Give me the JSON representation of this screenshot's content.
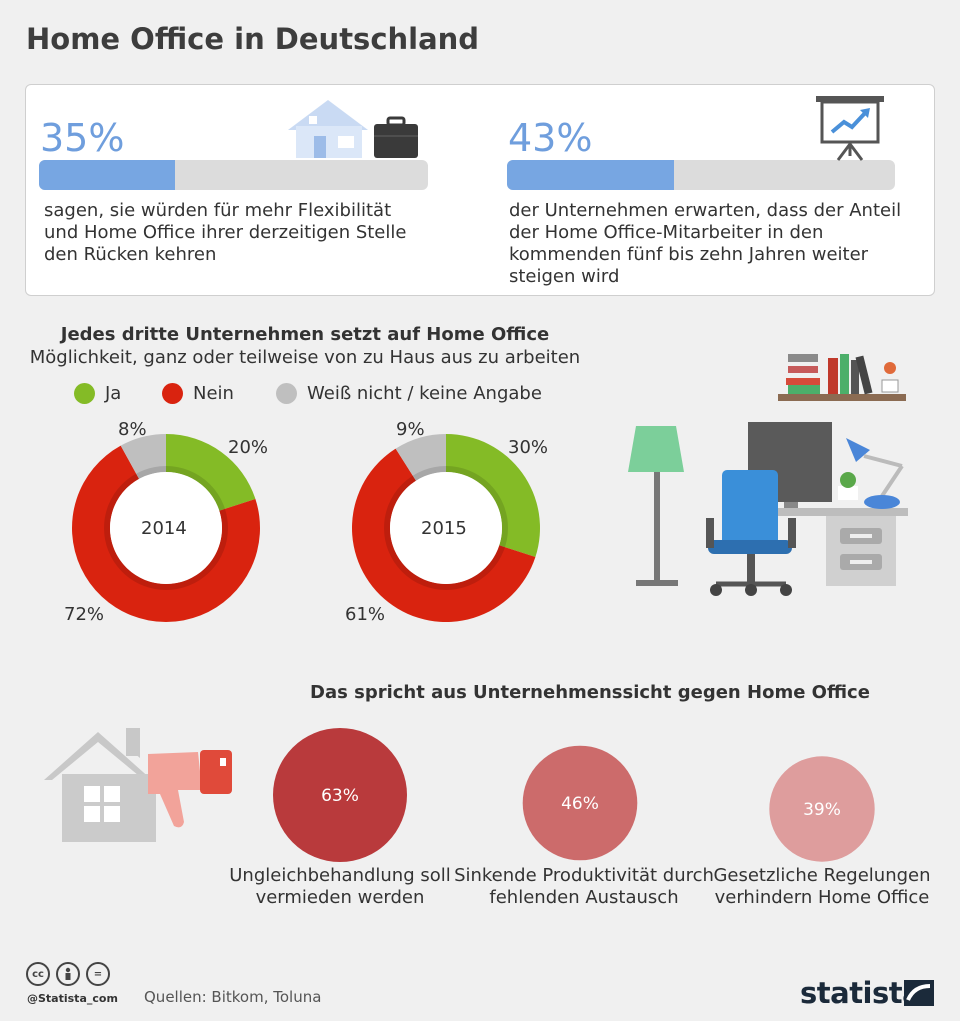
{
  "title": "Home Office in Deutschland",
  "stats": [
    {
      "value_label": "35%",
      "value": 35,
      "text": "sagen, sie würden für mehr Flexibilität und Home Office ihrer derzeitigen Stelle den Rücken kehren",
      "icon": "house-briefcase-icon"
    },
    {
      "value_label": "43%",
      "value": 43,
      "text": "der Unternehmen erwarten, dass der Anteil der Home Office-Mitarbeiter in den kommenden fünf bis zehn Jahren weiter steigen wird",
      "icon": "presentation-chart-icon"
    }
  ],
  "donut_section": {
    "heading": "Jedes dritte Unternehmen setzt auf Home Office",
    "subheading": "Möglichkeit, ganz oder teilweise von zu Haus aus zu arbeiten",
    "legend": [
      {
        "label": "Ja",
        "color": "#84bb26"
      },
      {
        "label": "Nein",
        "color": "#d9230f"
      },
      {
        "label": "Weiß nicht / keine Angabe",
        "color": "#bfbfbf"
      }
    ]
  },
  "reasons_section": {
    "heading": "Das spricht aus Unternehmenssicht gegen Home Office"
  },
  "chart_data": [
    {
      "type": "pie",
      "variant": "donut",
      "center_label": "2014",
      "categories": [
        "Ja",
        "Nein",
        "Weiß nicht / keine Angabe"
      ],
      "values": [
        20,
        72,
        8
      ],
      "value_labels": [
        "20%",
        "72%",
        "8%"
      ],
      "colors": [
        "#84bb26",
        "#d9230f",
        "#bfbfbf"
      ]
    },
    {
      "type": "pie",
      "variant": "donut",
      "center_label": "2015",
      "categories": [
        "Ja",
        "Nein",
        "Weiß nicht / keine Angabe"
      ],
      "values": [
        30,
        61,
        9
      ],
      "value_labels": [
        "30%",
        "61%",
        "9%"
      ],
      "colors": [
        "#84bb26",
        "#d9230f",
        "#bfbfbf"
      ]
    },
    {
      "type": "bubble",
      "categories": [
        "Ungleichbehandlung soll vermieden werden",
        "Sinkende Produktivität durch fehlenden Austausch",
        "Gesetzliche Regelungen verhindern Home Office"
      ],
      "values": [
        63,
        46,
        39
      ],
      "value_labels": [
        "63%",
        "46%",
        "39%"
      ],
      "colors": [
        "#b93a3c",
        "#cc6b6b",
        "#de9d9d"
      ]
    }
  ],
  "footer": {
    "source": "Quellen: Bitkom, Toluna",
    "cc_handle": "@Statista_com",
    "cc_icons": [
      "cc-icon",
      "by-person-icon",
      "nd-equals-icon"
    ],
    "brand": "statista"
  }
}
